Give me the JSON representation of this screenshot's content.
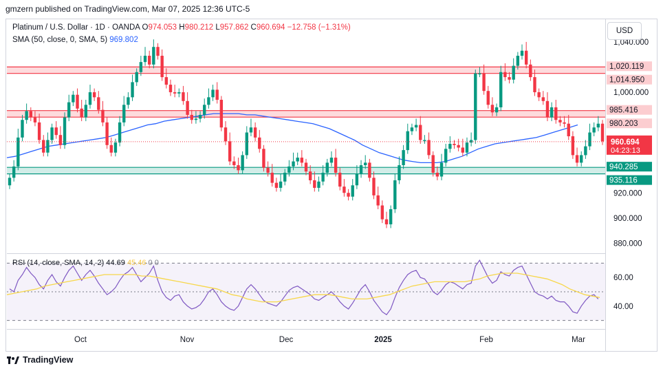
{
  "header": {
    "published": "gmzern published on TradingView.com, Mar 07, 2025 12:36 UTC-5"
  },
  "legend": {
    "symbol": "Platinum / U.S. Dollar · 1D · OANDA",
    "o_label": "O",
    "o": "974.053",
    "h_label": "H",
    "h": "980.212",
    "l_label": "L",
    "l": "957.862",
    "c_label": "C",
    "c": "960.694",
    "change": "−12.758 (−1.31%)",
    "sma_label": "SMA (50, close, 0, SMA, 5)",
    "sma_value": "969.802"
  },
  "rsi_legend": {
    "label": "RSI (14, close, SMA, 14, 2)",
    "rsi": "44.69",
    "sma": "45.46",
    "extra1": "0",
    "extra2": "0"
  },
  "currency_button": "USD",
  "footer": {
    "brand": "TradingView"
  },
  "colors": {
    "up": "#089981",
    "down": "#f23645",
    "sma": "#2962ff",
    "rsi": "#7e57c2",
    "rsi_sma": "#f7d74a"
  },
  "chart_data": [
    {
      "type": "candlestick",
      "title": "Platinum / U.S. Dollar · 1D · OANDA",
      "ylim": [
        872,
        1058
      ],
      "y_ticks": [
        "1,040.000",
        "1,000.000",
        "920.000",
        "900.000",
        "880.000"
      ],
      "x_ticks": [
        "Oct",
        "Nov",
        "Dec",
        "2025",
        "Feb",
        "Mar"
      ],
      "zones": [
        {
          "low": 1014.95,
          "high": 1020.119,
          "color": "#f23645",
          "labels": [
            "1,020.119",
            "1,014.950"
          ]
        },
        {
          "low": 980.203,
          "high": 985.416,
          "color": "#f23645",
          "labels": [
            "985.416",
            "980.203"
          ]
        },
        {
          "low": 935.116,
          "high": 940.285,
          "color": "#089981",
          "labels": [
            "940.285",
            "935.116"
          ]
        }
      ],
      "last_price": {
        "value": 960.694,
        "label": "960.694",
        "countdown": "04:23:13"
      },
      "closes": [
        932,
        941,
        964,
        978,
        985,
        980,
        976,
        962,
        952,
        962,
        972,
        966,
        958,
        980,
        992,
        998,
        987,
        980,
        990,
        1000,
        996,
        986,
        976,
        958,
        952,
        960,
        976,
        990,
        996,
        1008,
        1016,
        1024,
        1029,
        1022,
        1036,
        1029,
        1012,
        1006,
        1000,
        999,
        1000,
        993,
        982,
        978,
        979,
        982,
        990,
        996,
        1002,
        994,
        972,
        961,
        945,
        942,
        938,
        950,
        968,
        972,
        964,
        955,
        940,
        936,
        928,
        924,
        929,
        936,
        941,
        945,
        948,
        944,
        937,
        930,
        924,
        929,
        936,
        944,
        948,
        936,
        925,
        920,
        917,
        926,
        935,
        942,
        944,
        932,
        918,
        910,
        899,
        895,
        907,
        930,
        942,
        954,
        969,
        972,
        974,
        962,
        962,
        950,
        936,
        933,
        944,
        955,
        959,
        958,
        956,
        952,
        960,
        962,
        1015,
        1015,
        1001,
        990,
        984,
        988,
        1016,
        1012,
        1010,
        1021,
        1029,
        1033,
        1022,
        1012,
        1000,
        996,
        993,
        980,
        988,
        978,
        976,
        975,
        965,
        950,
        944,
        950,
        957,
        968,
        972,
        975,
        961
      ],
      "sma50": [
        948,
        949,
        951,
        953,
        955,
        957,
        958,
        959,
        960,
        961,
        962,
        963,
        964,
        966,
        968,
        970,
        972,
        974,
        975,
        977,
        978,
        979,
        980,
        981,
        982,
        983,
        983,
        983,
        983,
        982,
        982,
        981,
        980,
        979,
        978,
        977,
        976,
        975,
        973,
        971,
        968,
        965,
        962,
        958,
        955,
        952,
        950,
        948,
        946,
        945,
        944,
        944,
        944,
        945,
        947,
        949,
        952,
        955,
        957,
        959,
        960,
        961,
        962,
        963,
        964,
        966,
        968,
        970,
        972,
        974
      ],
      "rsi": {
        "ylim": [
          25,
          75
        ],
        "y_ticks": [
          "60.00",
          "40.00"
        ],
        "levels": [
          70,
          50,
          30
        ],
        "rsi_values": [
          52,
          50,
          58,
          62,
          67,
          63,
          60,
          55,
          52,
          58,
          62,
          57,
          54,
          60,
          65,
          68,
          63,
          58,
          62,
          65,
          61,
          56,
          52,
          48,
          50,
          53,
          58,
          62,
          64,
          67,
          62,
          57,
          60,
          63,
          68,
          58,
          50,
          46,
          44,
          47,
          48,
          43,
          40,
          38,
          39,
          41,
          45,
          50,
          52,
          48,
          43,
          40,
          38,
          37,
          40,
          46,
          52,
          55,
          52,
          48,
          44,
          42,
          41,
          40,
          43,
          47,
          51,
          53,
          54,
          52,
          50,
          48,
          45,
          44,
          46,
          48,
          50,
          47,
          43,
          40,
          38,
          42,
          47,
          52,
          55,
          50,
          44,
          40,
          36,
          34,
          38,
          46,
          53,
          58,
          62,
          64,
          65,
          60,
          59,
          55,
          50,
          48,
          51,
          55,
          57,
          56,
          54,
          52,
          55,
          56,
          68,
          72,
          66,
          60,
          56,
          58,
          64,
          62,
          61,
          65,
          67,
          68,
          62,
          56,
          50,
          48,
          47,
          45,
          47,
          44,
          43,
          43,
          40,
          36,
          35,
          40,
          44,
          47,
          48,
          45
        ],
        "rsi_sma": [
          48,
          49,
          50,
          51,
          52,
          54,
          55,
          56,
          57,
          58,
          59,
          60,
          61,
          62,
          62,
          62,
          62,
          62,
          61,
          61,
          60,
          59,
          58,
          57,
          56,
          55,
          54,
          53,
          52,
          50,
          48,
          47,
          45,
          44,
          43,
          43,
          43,
          44,
          45,
          46,
          47,
          48,
          48,
          48,
          47,
          46,
          45,
          45,
          45,
          46,
          47,
          48,
          50,
          52,
          54,
          55,
          56,
          57,
          57,
          57,
          57,
          57,
          58,
          59,
          61,
          62,
          63,
          63,
          63,
          62,
          61,
          60,
          59,
          57,
          55,
          52,
          50,
          48,
          47,
          46
        ]
      }
    }
  ]
}
